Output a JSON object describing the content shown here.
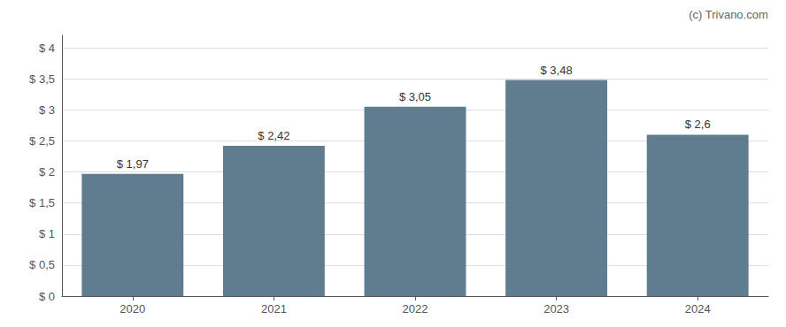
{
  "chart_data": {
    "type": "bar",
    "categories": [
      "2020",
      "2021",
      "2022",
      "2023",
      "2024"
    ],
    "values": [
      1.97,
      2.42,
      3.05,
      3.48,
      2.6
    ],
    "value_labels": [
      "$ 1,97",
      "$ 2,42",
      "$ 3,05",
      "$ 3,48",
      "$ 2,6"
    ],
    "data_labels": true,
    "color": "#607d8f",
    "ylim": [
      0,
      4.2
    ],
    "yticks": [
      {
        "value": 0,
        "label": "$ 0"
      },
      {
        "value": 0.5,
        "label": "$ 0,5"
      },
      {
        "value": 1.0,
        "label": "$ 1"
      },
      {
        "value": 1.5,
        "label": "$ 1,5"
      },
      {
        "value": 2.0,
        "label": "$ 2"
      },
      {
        "value": 2.5,
        "label": "$ 2,5"
      },
      {
        "value": 3.0,
        "label": "$ 3"
      },
      {
        "value": 3.5,
        "label": "$ 3,5"
      },
      {
        "value": 4.0,
        "label": "$ 4"
      }
    ],
    "grid": true,
    "annotations": [
      "(c) Trivano.com"
    ]
  }
}
